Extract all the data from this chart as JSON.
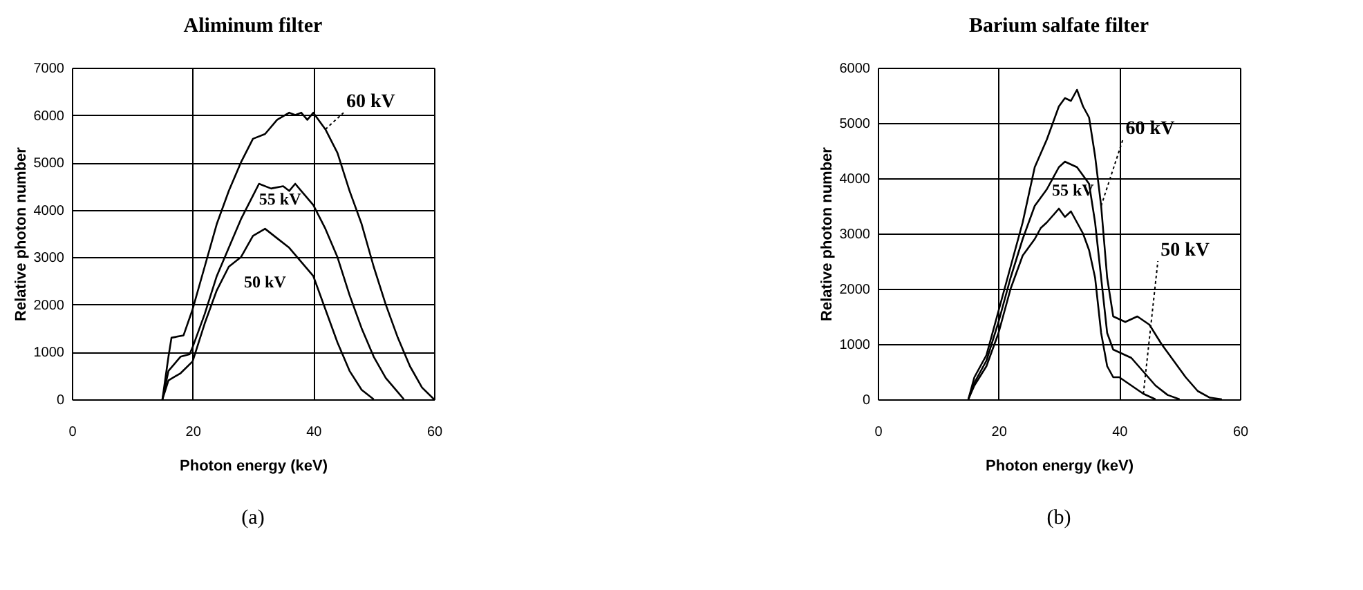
{
  "chart_data": [
    {
      "type": "line",
      "title": "Aliminum filter",
      "xlabel": "Photon energy (keV)",
      "ylabel": "Relative photon number",
      "annotations": [
        "(a)"
      ],
      "xlim": [
        0,
        60
      ],
      "xticks": [
        0,
        20,
        40,
        60
      ],
      "ylim": [
        0,
        7000
      ],
      "yticks": [
        0,
        1000,
        2000,
        3000,
        4000,
        5000,
        6000,
        7000
      ],
      "grid": true,
      "legend": false,
      "marker": "none",
      "line_style": "solid",
      "series": [
        {
          "name": "60 kV",
          "color": "#000000",
          "x": [
            15,
            16,
            16.5,
            18.5,
            20,
            22,
            24,
            26,
            28,
            30,
            32,
            34,
            36,
            37,
            38,
            39,
            40,
            42,
            44,
            45,
            46,
            48,
            50,
            52,
            54,
            56,
            58,
            60
          ],
          "values": [
            0,
            900,
            1300,
            1350,
            1900,
            2800,
            3700,
            4400,
            5000,
            5500,
            5600,
            5900,
            6050,
            6000,
            6050,
            5900,
            6050,
            5700,
            5200,
            4800,
            4400,
            3700,
            2800,
            2000,
            1300,
            700,
            250,
            0
          ]
        },
        {
          "name": "55 kV",
          "color": "#000000",
          "x": [
            15,
            16,
            18,
            19.5,
            20,
            22,
            24,
            26,
            28,
            30,
            31,
            33,
            35,
            36,
            37,
            38,
            40,
            42,
            44,
            46,
            48,
            50,
            52,
            54,
            55
          ],
          "values": [
            0,
            600,
            900,
            950,
            1100,
            1800,
            2600,
            3200,
            3800,
            4300,
            4550,
            4450,
            4500,
            4400,
            4550,
            4400,
            4100,
            3600,
            3000,
            2200,
            1500,
            900,
            450,
            150,
            0
          ]
        },
        {
          "name": "50 kV",
          "color": "#000000",
          "x": [
            15,
            16,
            18,
            20,
            22,
            24,
            26,
            28,
            30,
            32,
            34,
            36,
            38,
            40,
            42,
            44,
            46,
            48,
            50
          ],
          "values": [
            0,
            400,
            550,
            800,
            1600,
            2300,
            2800,
            3000,
            3450,
            3600,
            3400,
            3200,
            2900,
            2600,
            1900,
            1200,
            600,
            200,
            0
          ]
        }
      ]
    },
    {
      "type": "line",
      "title": "Barium salfate filter",
      "xlabel": "Photon energy (keV)",
      "ylabel": "Relative photon number",
      "annotations": [
        "(b)"
      ],
      "xlim": [
        0,
        60
      ],
      "xticks": [
        0,
        20,
        40,
        60
      ],
      "ylim": [
        0,
        6000
      ],
      "yticks": [
        0,
        1000,
        2000,
        3000,
        4000,
        5000,
        6000
      ],
      "grid": true,
      "legend": false,
      "marker": "none",
      "line_style": "solid",
      "series": [
        {
          "name": "60 kV",
          "color": "#000000",
          "x": [
            15,
            16,
            18,
            20,
            22,
            24,
            26,
            28,
            30,
            31,
            32,
            33,
            34,
            35,
            36,
            37,
            38,
            39,
            40,
            41,
            43,
            45,
            47,
            49,
            51,
            53,
            55,
            57
          ],
          "values": [
            0,
            400,
            800,
            1600,
            2400,
            3200,
            4200,
            4700,
            5300,
            5450,
            5400,
            5600,
            5300,
            5100,
            4400,
            3500,
            2200,
            1500,
            1450,
            1400,
            1500,
            1350,
            1000,
            700,
            400,
            150,
            30,
            0
          ]
        },
        {
          "name": "55 kV",
          "color": "#000000",
          "x": [
            15,
            16,
            18,
            20,
            22,
            24,
            26,
            28,
            30,
            31,
            32,
            33,
            35,
            36,
            37,
            38,
            39,
            40,
            42,
            44,
            46,
            48,
            50
          ],
          "values": [
            0,
            300,
            700,
            1400,
            2200,
            2900,
            3500,
            3800,
            4200,
            4300,
            4250,
            4200,
            3900,
            3200,
            2200,
            1200,
            900,
            850,
            750,
            500,
            250,
            80,
            0
          ]
        },
        {
          "name": "50 kV",
          "color": "#000000",
          "x": [
            15,
            16,
            18,
            20,
            22,
            24,
            26,
            27,
            28,
            30,
            31,
            32,
            34,
            35,
            36,
            37,
            38,
            39,
            40,
            42,
            44,
            46
          ],
          "values": [
            0,
            250,
            600,
            1200,
            2000,
            2600,
            2900,
            3100,
            3200,
            3450,
            3300,
            3400,
            3000,
            2700,
            2200,
            1200,
            600,
            400,
            400,
            250,
            100,
            0
          ]
        }
      ]
    }
  ]
}
